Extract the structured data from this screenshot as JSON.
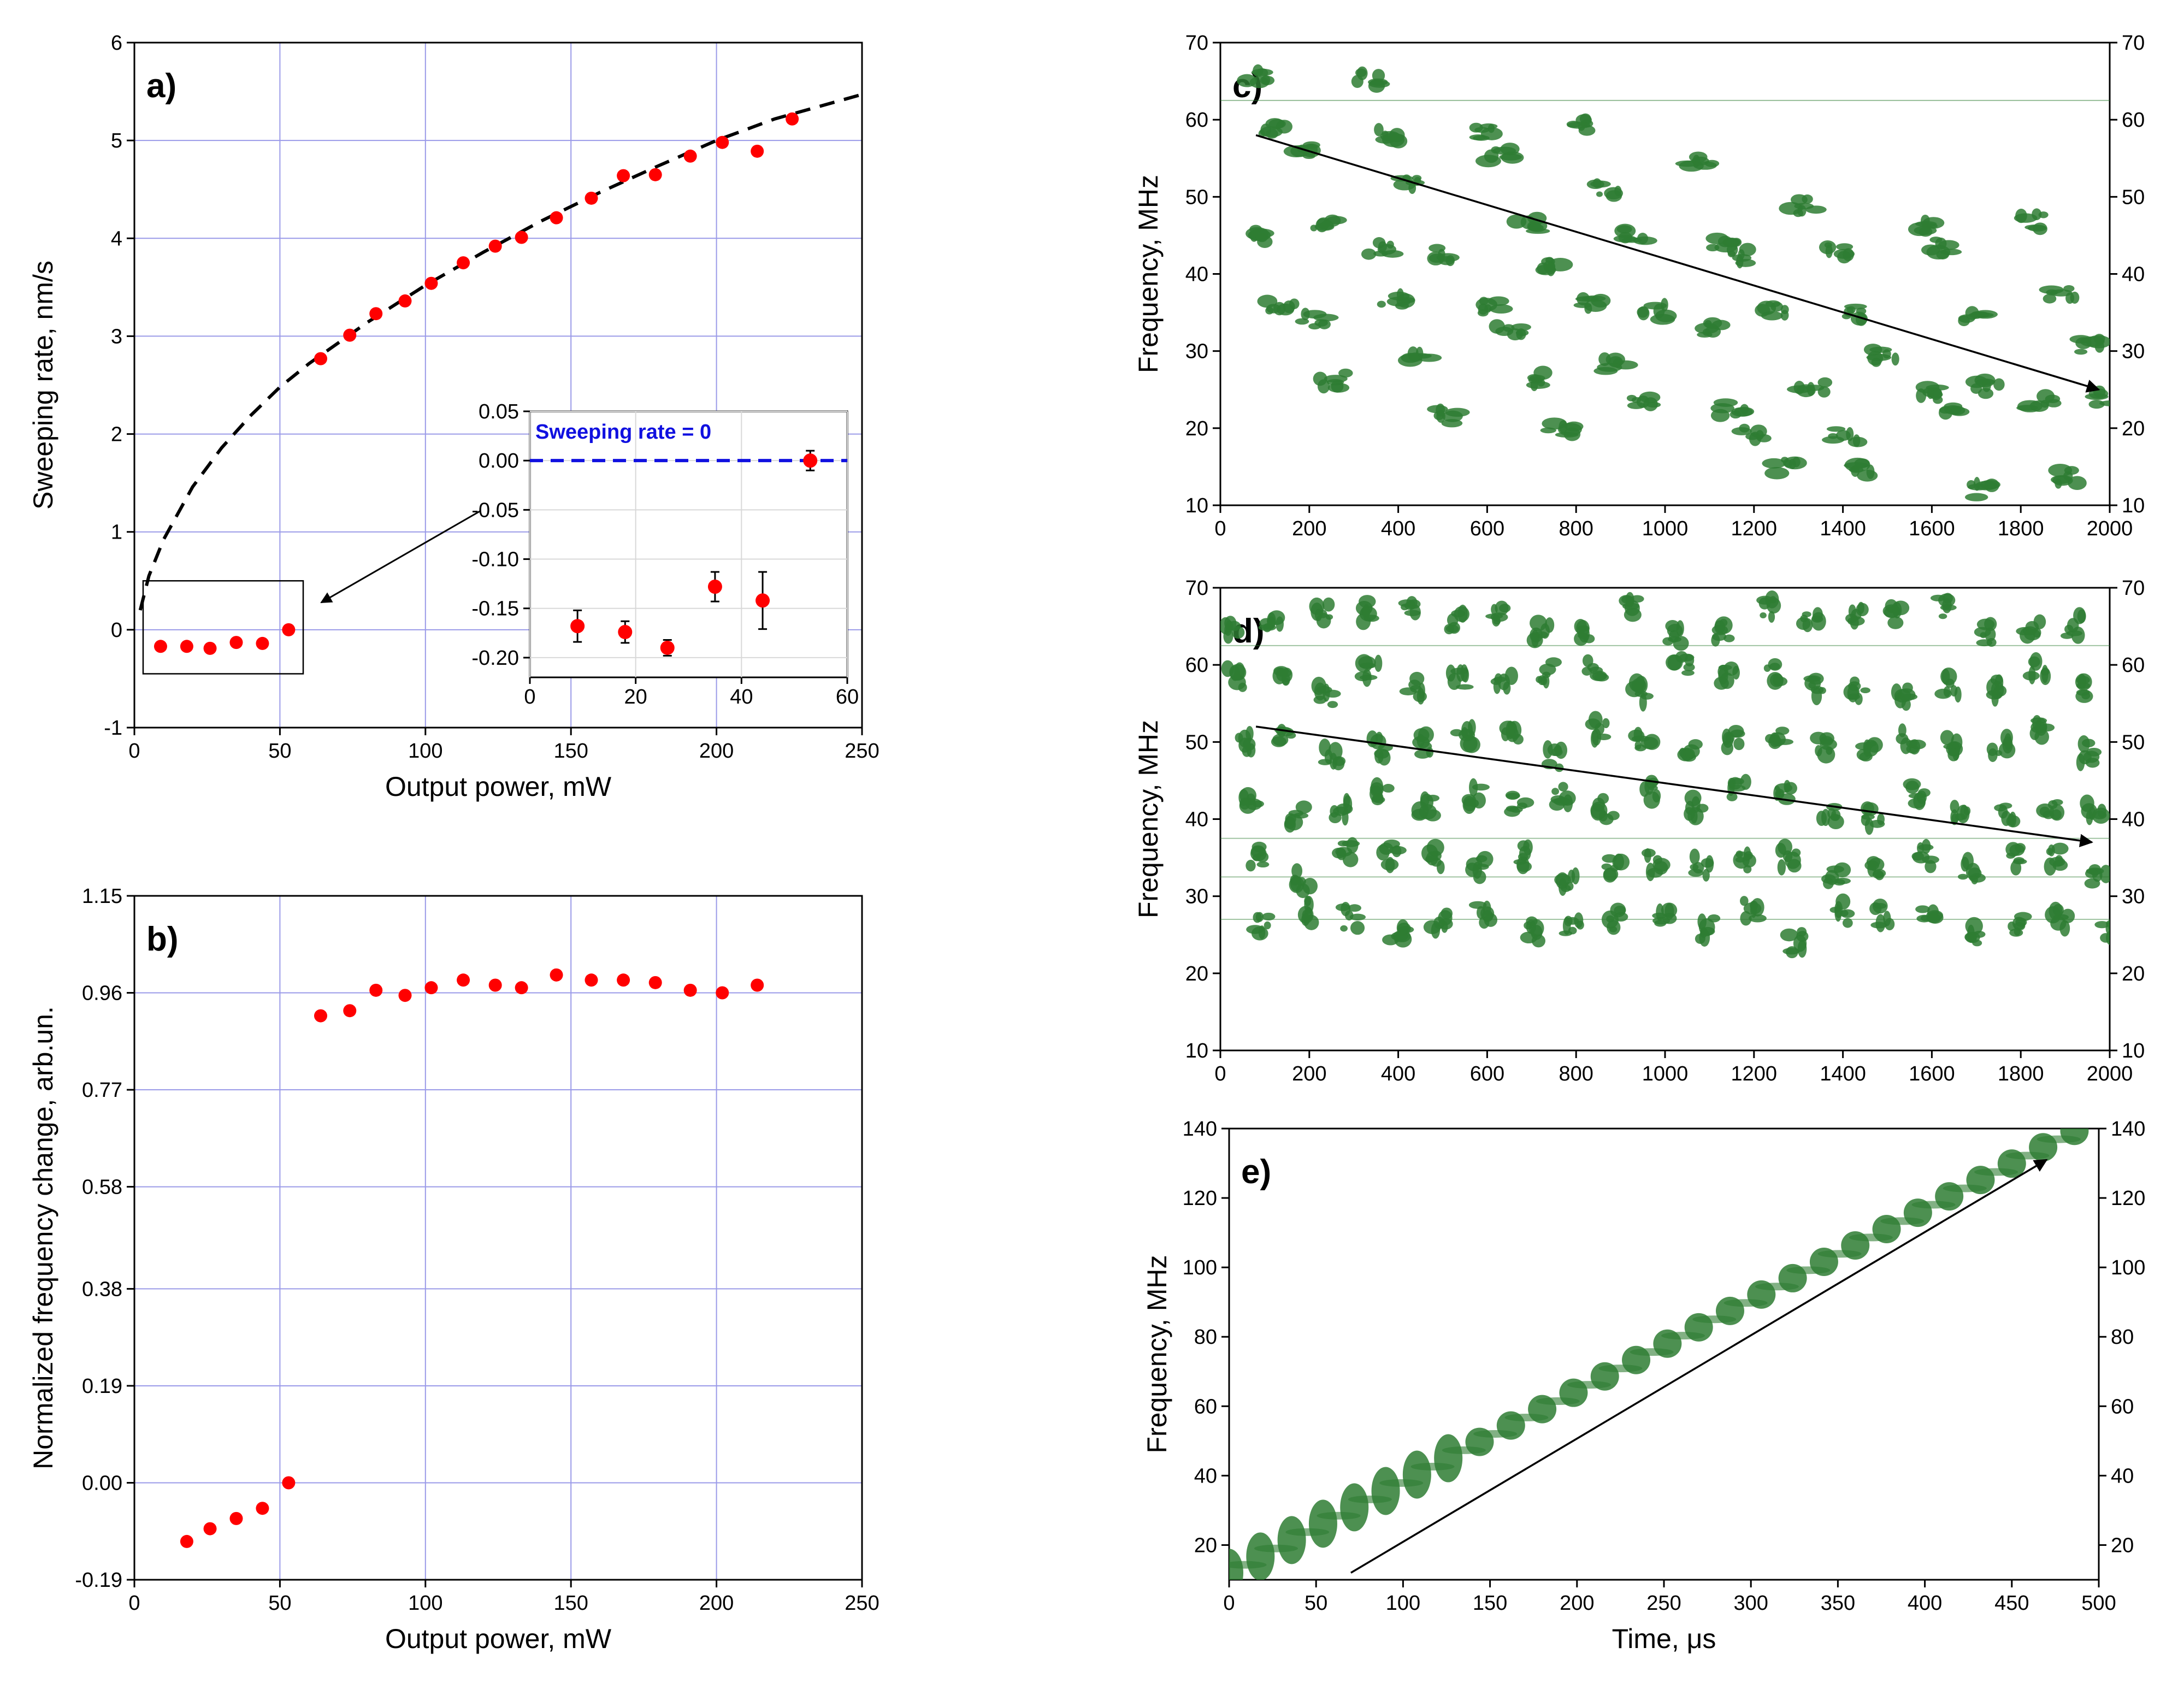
{
  "chart_data": [
    {
      "id": "a",
      "type": "scatter",
      "panel_label": "a)",
      "xlabel": "Output power, mW",
      "ylabel": "Sweeping rate, nm/s",
      "xlim": [
        0,
        250
      ],
      "ylim": [
        -1,
        6
      ],
      "xticks": [
        "0",
        "50",
        "100",
        "150",
        "200",
        "250"
      ],
      "yticks": [
        "-1",
        "0",
        "1",
        "2",
        "3",
        "4",
        "5",
        "6"
      ],
      "grid": true,
      "series": [
        {
          "name": "measured",
          "color": "#ff0000",
          "x": [
            9,
            18,
            26,
            35,
            44,
            53,
            64,
            74,
            83,
            93,
            102,
            113,
            124,
            133,
            145,
            157,
            168,
            179,
            191,
            202,
            214,
            226
          ],
          "y": [
            -0.17,
            -0.17,
            -0.19,
            -0.13,
            -0.14,
            0.0,
            2.77,
            3.01,
            3.23,
            3.36,
            3.54,
            3.75,
            3.92,
            4.01,
            4.21,
            4.41,
            4.64,
            4.65,
            4.84,
            4.98,
            4.89,
            5.22
          ]
        },
        {
          "name": "fit",
          "style": "dashed",
          "color": "#000000",
          "x": [
            2,
            5,
            10,
            20,
            30,
            40,
            50,
            60,
            80,
            100,
            120,
            140,
            160,
            180,
            200,
            220,
            250
          ],
          "y": [
            0.2,
            0.55,
            0.92,
            1.46,
            1.86,
            2.19,
            2.48,
            2.72,
            3.14,
            3.52,
            3.86,
            4.18,
            4.47,
            4.74,
            5.0,
            5.22,
            5.47
          ]
        }
      ],
      "inset": {
        "xlim": [
          0,
          60
        ],
        "ylim": [
          -0.22,
          0.05
        ],
        "xticks": [
          "0",
          "20",
          "40",
          "60"
        ],
        "yticks": [
          "0.05",
          "0.00",
          "-0.05",
          "-0.10",
          "-0.15",
          "-0.20"
        ],
        "annotation": "Sweeping rate = 0",
        "x": [
          9,
          18,
          26,
          35,
          44,
          53
        ],
        "y": [
          -0.168,
          -0.174,
          -0.19,
          -0.128,
          -0.142,
          0.0
        ],
        "err": [
          0.016,
          0.011,
          0.008,
          0.015,
          0.029,
          0.01
        ]
      }
    },
    {
      "id": "b",
      "type": "scatter",
      "panel_label": "b)",
      "xlabel": "Output power, mW",
      "ylabel": "Normalized frequency change, arb.un.",
      "xlim": [
        0,
        250
      ],
      "ylim": [
        -0.19,
        1.15
      ],
      "xticks": [
        "0",
        "50",
        "100",
        "150",
        "200",
        "250"
      ],
      "yticks": [
        "-0.19",
        "0.00",
        "0.19",
        "0.38",
        "0.58",
        "0.77",
        "0.96",
        "1.15"
      ],
      "grid": true,
      "series": [
        {
          "name": "measured",
          "color": "#ff0000",
          "x": [
            18,
            26,
            35,
            44,
            53,
            64,
            74,
            83,
            93,
            102,
            113,
            124,
            133,
            145,
            157,
            168,
            179,
            191,
            202,
            214
          ],
          "y": [
            -0.115,
            -0.09,
            -0.07,
            -0.05,
            0.0,
            0.915,
            0.925,
            0.965,
            0.955,
            0.97,
            0.985,
            0.975,
            0.97,
            0.995,
            0.985,
            0.985,
            0.98,
            0.965,
            0.96,
            0.975
          ]
        }
      ]
    },
    {
      "id": "c",
      "type": "heatmap",
      "panel_label": "c)",
      "xlabel": "",
      "ylabel": "Frequency, MHz",
      "xlim": [
        0,
        2000
      ],
      "ylim": [
        10,
        70
      ],
      "xticks": [
        "0",
        "200",
        "400",
        "600",
        "800",
        "1000",
        "1200",
        "1400",
        "1600",
        "1800",
        "2000"
      ],
      "yticks": [
        "10",
        "20",
        "30",
        "40",
        "50",
        "60",
        "70"
      ],
      "arrow": {
        "from": [
          80,
          58
        ],
        "to": [
          2000,
          25
        ]
      },
      "spot_color": "#2e7d32"
    },
    {
      "id": "d",
      "type": "heatmap",
      "panel_label": "d)",
      "xlabel": "",
      "ylabel": "Frequency, MHz",
      "xlim": [
        0,
        2000
      ],
      "ylim": [
        10,
        70
      ],
      "xticks": [
        "0",
        "200",
        "400",
        "600",
        "800",
        "1000",
        "1200",
        "1400",
        "1600",
        "1800",
        "2000"
      ],
      "yticks": [
        "10",
        "20",
        "30",
        "40",
        "50",
        "60",
        "70"
      ],
      "arrow": {
        "from": [
          80,
          52
        ],
        "to": [
          1960,
          37
        ]
      },
      "spot_color": "#2e7d32"
    },
    {
      "id": "e",
      "type": "heatmap",
      "panel_label": "e)",
      "xlabel": "Time, μs",
      "ylabel": "Frequency, MHz",
      "xlim": [
        0,
        500
      ],
      "ylim": [
        10,
        140
      ],
      "xticks": [
        "0",
        "50",
        "100",
        "150",
        "200",
        "250",
        "300",
        "350",
        "400",
        "450",
        "500"
      ],
      "yticks": [
        "20",
        "40",
        "60",
        "80",
        "100",
        "120",
        "140"
      ],
      "arrow": {
        "from": [
          70,
          12
        ],
        "to": [
          470,
          131
        ]
      },
      "spot_color": "#2e7d32"
    }
  ]
}
